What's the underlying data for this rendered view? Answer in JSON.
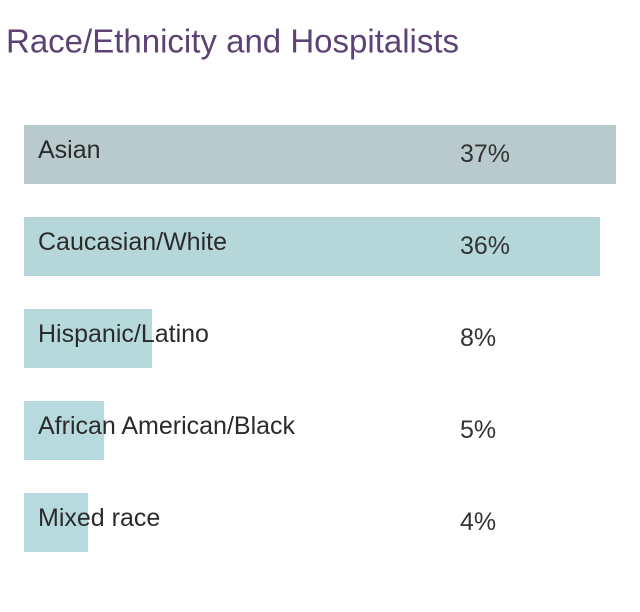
{
  "chart_data": {
    "type": "hbar",
    "title": "Race/Ethnicity and Hospitalists",
    "categories": [
      "Asian",
      "Caucasian/White",
      "Hispanic/Latino",
      "African American/Black",
      "Mixed race"
    ],
    "values": [
      37,
      36,
      8,
      5,
      4
    ],
    "value_labels": [
      "37%",
      "36%",
      "8%",
      "5%",
      "4%"
    ],
    "colors": [
      "#b9cacd",
      "#b6d7da",
      "#b6d9dc",
      "#b6dadd",
      "#b6dadd"
    ]
  }
}
